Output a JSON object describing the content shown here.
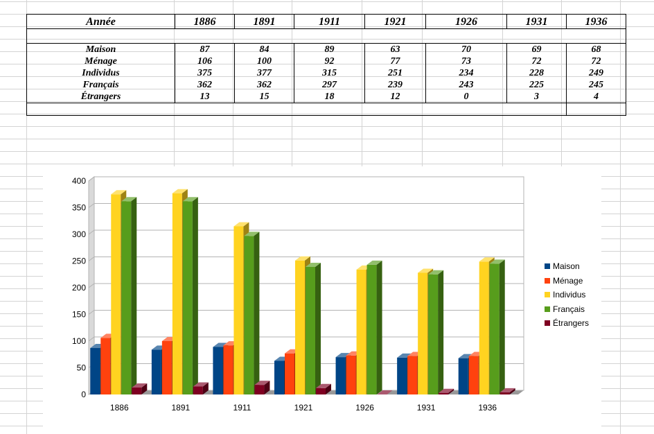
{
  "table": {
    "header_label": "Année",
    "years": [
      "1886",
      "1891",
      "1911",
      "1921",
      "1926",
      "1931",
      "1936"
    ],
    "rows": [
      {
        "label": "Maison",
        "values": [
          "87",
          "84",
          "89",
          "63",
          "70",
          "69",
          "68"
        ]
      },
      {
        "label": "Ménage",
        "values": [
          "106",
          "100",
          "92",
          "77",
          "73",
          "72",
          "72"
        ]
      },
      {
        "label": "Individus",
        "values": [
          "375",
          "377",
          "315",
          "251",
          "234",
          "228",
          "249"
        ]
      },
      {
        "label": "Français",
        "values": [
          "362",
          "362",
          "297",
          "239",
          "243",
          "225",
          "245"
        ]
      },
      {
        "label": "Étrangers",
        "values": [
          "13",
          "15",
          "18",
          "12",
          "0",
          "3",
          "4"
        ]
      }
    ]
  },
  "chart_data": {
    "type": "bar",
    "categories": [
      "1886",
      "1891",
      "1911",
      "1921",
      "1926",
      "1931",
      "1936"
    ],
    "series": [
      {
        "name": "Maison",
        "color": "#004586",
        "values": [
          87,
          84,
          89,
          63,
          70,
          69,
          68
        ]
      },
      {
        "name": "Ménage",
        "color": "#ff420e",
        "values": [
          106,
          100,
          92,
          77,
          73,
          72,
          72
        ]
      },
      {
        "name": "Individus",
        "color": "#ffd320",
        "values": [
          375,
          377,
          315,
          251,
          234,
          228,
          249
        ]
      },
      {
        "name": "Français",
        "color": "#579d1c",
        "values": [
          362,
          362,
          297,
          239,
          243,
          225,
          245
        ]
      },
      {
        "name": "Étrangers",
        "color": "#7e0021",
        "values": [
          13,
          15,
          18,
          12,
          0,
          3,
          4
        ]
      }
    ],
    "ylim": [
      0,
      400
    ],
    "yticks": [
      "0",
      "50",
      "100",
      "150",
      "200",
      "250",
      "300",
      "350",
      "400"
    ],
    "grid": true,
    "legend": "right",
    "style": "3d"
  }
}
